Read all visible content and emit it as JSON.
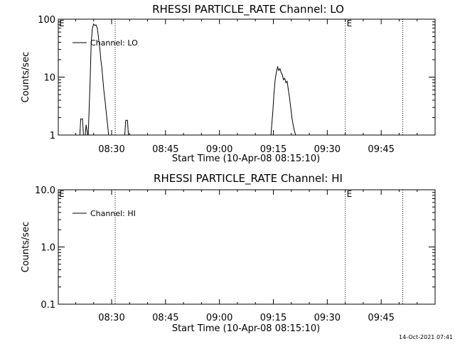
{
  "footer": {
    "timestamp": "14-Oct-2021 07:41"
  },
  "chart_data": [
    {
      "type": "line",
      "title": "RHESSI PARTICLE_RATE Channel: LO",
      "xlabel": "Start Time (10-Apr-08 08:15:10)",
      "ylabel": "Counts/sec",
      "y_scale": "log",
      "ylim": [
        1,
        100
      ],
      "xlim": [
        "08:15:10",
        "10:00:00"
      ],
      "x_ticks": [
        "08:30",
        "08:45",
        "09:00",
        "09:15",
        "09:30",
        "09:45"
      ],
      "y_ticks": [
        "1",
        "10",
        "100"
      ],
      "legend": {
        "placement": "top-left",
        "entries": [
          "Channel: LO"
        ]
      },
      "markers": [
        {
          "time": "08:31",
          "label": ""
        },
        {
          "time": "09:35",
          "label": "E"
        },
        {
          "time": "09:51",
          "label": ""
        }
      ],
      "corner_label": "E",
      "series": [
        {
          "name": "Channel: LO",
          "segments": [
            [
              [
                "08:21:10",
                1
              ],
              [
                "08:21:25",
                1.9
              ],
              [
                "08:21:55",
                1.9
              ],
              [
                "08:22:10",
                1
              ]
            ],
            [
              [
                "08:22:40",
                1
              ],
              [
                "08:22:55",
                1.5
              ],
              [
                "08:23:20",
                1
              ]
            ],
            [
              [
                "08:23:30",
                1
              ],
              [
                "08:24:00",
                8
              ],
              [
                "08:24:20",
                40
              ],
              [
                "08:24:40",
                70
              ],
              [
                "08:25:00",
                82
              ],
              [
                "08:25:20",
                78
              ],
              [
                "08:25:40",
                80
              ],
              [
                "08:26:00",
                70
              ],
              [
                "08:26:15",
                55
              ],
              [
                "08:26:30",
                40
              ],
              [
                "08:26:45",
                30
              ],
              [
                "08:27:00",
                20
              ],
              [
                "08:27:15",
                15
              ],
              [
                "08:27:30",
                10
              ],
              [
                "08:27:50",
                6
              ],
              [
                "08:28:10",
                4
              ],
              [
                "08:28:30",
                2.5
              ],
              [
                "08:28:50",
                1.6
              ],
              [
                "08:29:10",
                1
              ]
            ],
            [
              [
                "08:33:40",
                1
              ],
              [
                "08:33:55",
                1.8
              ],
              [
                "08:34:25",
                1.8
              ],
              [
                "08:34:40",
                1
              ]
            ],
            [
              [
                "09:14:20",
                1
              ],
              [
                "09:14:50",
                2.5
              ],
              [
                "09:15:10",
                5
              ],
              [
                "09:15:30",
                9
              ],
              [
                "09:15:50",
                12
              ],
              [
                "09:16:10",
                15
              ],
              [
                "09:16:30",
                13
              ],
              [
                "09:16:50",
                14
              ],
              [
                "09:17:10",
                12
              ],
              [
                "09:17:30",
                11
              ],
              [
                "09:17:50",
                9
              ],
              [
                "09:18:10",
                9.5
              ],
              [
                "09:18:30",
                8
              ],
              [
                "09:18:50",
                8.5
              ],
              [
                "09:19:10",
                6
              ],
              [
                "09:19:30",
                4.5
              ],
              [
                "09:19:50",
                3
              ],
              [
                "09:20:10",
                2
              ],
              [
                "09:20:30",
                1.5
              ],
              [
                "09:20:50",
                1.2
              ],
              [
                "09:21:10",
                1
              ]
            ]
          ]
        }
      ]
    },
    {
      "type": "line",
      "title": "RHESSI PARTICLE_RATE Channel: HI",
      "xlabel": "Start Time (10-Apr-08 08:15:10)",
      "ylabel": "Counts/sec",
      "y_scale": "log",
      "ylim": [
        0.1,
        10
      ],
      "xlim": [
        "08:15:10",
        "10:00:00"
      ],
      "x_ticks": [
        "08:30",
        "08:45",
        "09:00",
        "09:15",
        "09:30",
        "09:45"
      ],
      "y_ticks": [
        "0.1",
        "1.0",
        "10.0"
      ],
      "legend": {
        "placement": "top-left",
        "entries": [
          "Channel: HI"
        ]
      },
      "markers": [
        {
          "time": "08:31",
          "label": ""
        },
        {
          "time": "09:35",
          "label": "E"
        },
        {
          "time": "09:51",
          "label": ""
        }
      ],
      "corner_label": "E",
      "series": [
        {
          "name": "Channel: HI",
          "segments": []
        }
      ]
    }
  ]
}
